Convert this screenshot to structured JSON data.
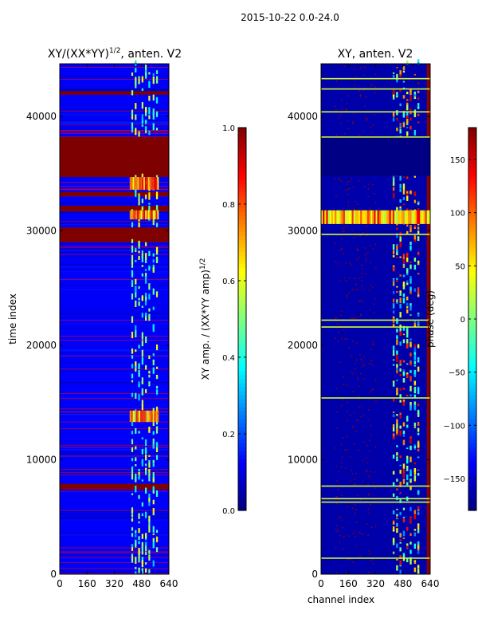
{
  "figure": {
    "suptitle": "2015-10-22 0.0-24.0"
  },
  "colors": {
    "jet": [
      "#00007f",
      "#0000ff",
      "#007fff",
      "#00ffff",
      "#7fff7f",
      "#ffff00",
      "#ff7f00",
      "#ff0000",
      "#7f0000"
    ],
    "background": "#ffffff",
    "axes": "#000000"
  },
  "chart_data": [
    {
      "type": "heatmap",
      "title_main": "XY/(XX*YY)",
      "title_sup": "1/2",
      "title_tail": ", anten. V2",
      "xlabel": "",
      "ylabel": "time index",
      "xlim": [
        0,
        640
      ],
      "ylim": [
        0,
        44600
      ],
      "xticks": [
        "0",
        "160",
        "320",
        "480",
        "640"
      ],
      "xtick_values": [
        0,
        160,
        320,
        480,
        640
      ],
      "yticks": [
        "0",
        "10000",
        "20000",
        "30000",
        "40000"
      ],
      "ytick_values": [
        0,
        10000,
        20000,
        30000,
        40000
      ],
      "colorbar": {
        "label_main": "XY amp. / (XX*YY amp)",
        "label_sup": "1/2",
        "range": [
          0.0,
          1.0
        ],
        "ticks": [
          "0.0",
          "0.2",
          "0.4",
          "0.6",
          "0.8",
          "1.0"
        ],
        "tick_values": [
          0.0,
          0.2,
          0.4,
          0.6,
          0.8,
          1.0
        ]
      },
      "background_value": 0.12,
      "saturated_bands": [
        {
          "t0": 7400,
          "t1": 7900,
          "value": 1.0
        },
        {
          "t0": 29000,
          "t1": 30300,
          "value": 1.0
        },
        {
          "t0": 31700,
          "t1": 32200,
          "value": 1.0
        },
        {
          "t0": 33000,
          "t1": 33400,
          "value": 1.0
        },
        {
          "t0": 34700,
          "t1": 38200,
          "value": 1.0
        },
        {
          "t0": 41900,
          "t1": 42200,
          "value": 1.0
        }
      ],
      "bright_columns": [
        420,
        440,
        460,
        480,
        500,
        520,
        545,
        565
      ],
      "bright_regions": [
        {
          "t0": 13300,
          "t1": 14300,
          "value": 0.55
        },
        {
          "t0": 31000,
          "t1": 31800,
          "value": 0.6
        },
        {
          "t0": 33600,
          "t1": 34700,
          "value": 0.6
        }
      ]
    },
    {
      "type": "heatmap",
      "title": "XY, anten. V2",
      "xlabel": "channel index",
      "ylabel": "",
      "xlim": [
        0,
        640
      ],
      "ylim": [
        0,
        44600
      ],
      "xticks": [
        "0",
        "160",
        "320",
        "480",
        "640"
      ],
      "xtick_values": [
        0,
        160,
        320,
        480,
        640
      ],
      "yticks": [
        "0",
        "10000",
        "20000",
        "30000",
        "40000"
      ],
      "ytick_values": [
        0,
        10000,
        20000,
        30000,
        40000
      ],
      "colorbar": {
        "label": "phase (deg)",
        "range": [
          -180,
          180
        ],
        "ticks": [
          "−150",
          "−100",
          "−50",
          "0",
          "50",
          "100",
          "150"
        ],
        "tick_values": [
          -150,
          -100,
          -50,
          0,
          50,
          100,
          150
        ]
      },
      "background_value": -165,
      "dark_band": {
        "t0": 34800,
        "t1": 38200,
        "value": -178
      },
      "hot_band": {
        "t0": 30600,
        "t1": 31800,
        "value": 150
      },
      "bright_lines": [
        1400,
        6300,
        6600,
        7700,
        15400,
        21600,
        22200,
        29700,
        38200,
        40400,
        42400,
        43300
      ],
      "bright_columns": [
        420,
        440,
        460,
        480,
        500,
        520,
        545,
        565
      ]
    }
  ]
}
